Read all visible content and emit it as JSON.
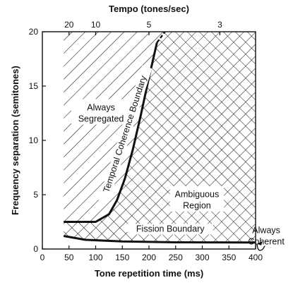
{
  "chart_data": {
    "type": "line",
    "xlabel": "Tone repetition time (ms)",
    "ylabel": "Frequency separation (semitones)",
    "top_axis_label": "Tempo (tones/sec)",
    "xlim": [
      0,
      400
    ],
    "ylim": [
      0,
      20
    ],
    "x_ticks": [
      0,
      50,
      100,
      150,
      200,
      250,
      300,
      350,
      400
    ],
    "y_ticks": [
      0,
      5,
      10,
      15,
      20
    ],
    "top_ticks": [
      {
        "label": "20",
        "x": 50
      },
      {
        "label": "10",
        "x": 100
      },
      {
        "label": "5",
        "x": 200
      },
      {
        "label": "3",
        "x": 333
      }
    ],
    "grid": false,
    "series": [
      {
        "name": "Temporal Coherence Boundary",
        "x": [
          40,
          100,
          125,
          140,
          155,
          170,
          185,
          200,
          215,
          230
        ],
        "y": [
          2.5,
          2.5,
          3.2,
          4.5,
          6.5,
          9.2,
          12.4,
          15.8,
          19.0,
          20.0
        ],
        "dashed_from_x": 215
      },
      {
        "name": "Fission Boundary",
        "x": [
          40,
          80,
          150,
          250,
          400
        ],
        "y": [
          1.2,
          0.85,
          0.7,
          0.62,
          0.6
        ]
      }
    ],
    "regions": [
      {
        "label_lines": [
          "Always",
          "Segregated"
        ],
        "x": 110,
        "y": 12.5,
        "fill": "diagonal-hatch"
      },
      {
        "label_lines": [
          "Ambiguous",
          "Region"
        ],
        "x": 290,
        "y": 4.5,
        "fill": "cross-hatch"
      },
      {
        "label_lines": [
          "Always",
          "Coherent"
        ],
        "x": 420,
        "y": 1.2,
        "fill": "none"
      }
    ],
    "annotations": [
      {
        "text": "Temporal Coherence Boundary",
        "x": 160,
        "y": 10.5,
        "angle": -72
      },
      {
        "text": "Fission Boundary",
        "x": 240,
        "y": 1.6,
        "angle": 0
      }
    ]
  }
}
